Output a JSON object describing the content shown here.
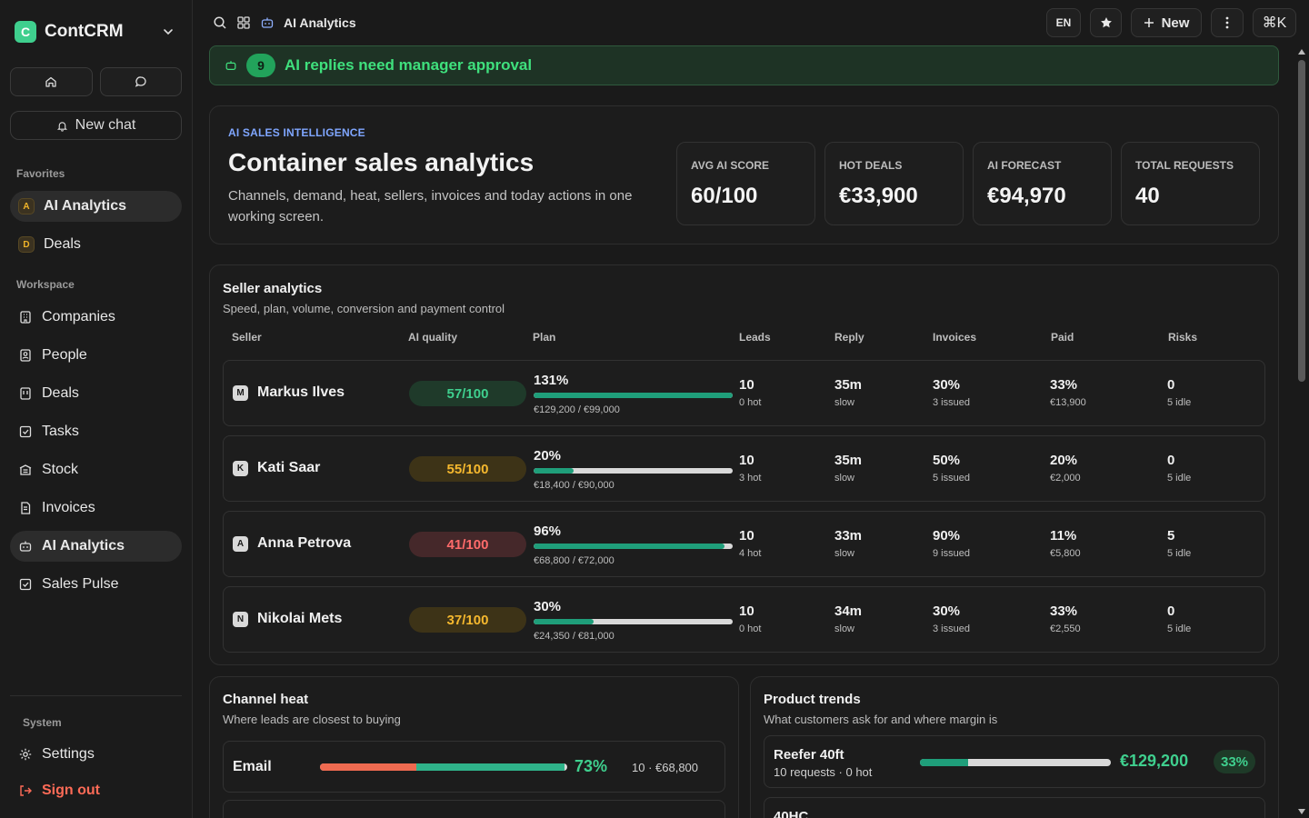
{
  "app": {
    "name": "ContCRM",
    "logo_letter": "C"
  },
  "sidebar": {
    "new_chat": "New chat",
    "favorites_label": "Favorites",
    "favorites": [
      {
        "label": "AI Analytics",
        "badge": "A",
        "active": true
      },
      {
        "label": "Deals",
        "badge": "D",
        "active": false
      }
    ],
    "workspace_label": "Workspace",
    "workspace": [
      {
        "label": "Companies",
        "icon": "building-icon"
      },
      {
        "label": "People",
        "icon": "person-icon"
      },
      {
        "label": "Deals",
        "icon": "deals-icon"
      },
      {
        "label": "Tasks",
        "icon": "task-icon"
      },
      {
        "label": "Stock",
        "icon": "stock-icon"
      },
      {
        "label": "Invoices",
        "icon": "invoice-icon"
      },
      {
        "label": "AI Analytics",
        "icon": "bot-icon",
        "active": true
      },
      {
        "label": "Sales Pulse",
        "icon": "pulse-icon"
      }
    ],
    "system_label": "System",
    "settings": "Settings",
    "sign_out": "Sign out"
  },
  "topbar": {
    "page_title": "AI Analytics",
    "lang": "EN",
    "new_label": "New",
    "shortcut": "⌘K"
  },
  "alert": {
    "count": "9",
    "text": "AI replies need manager approval"
  },
  "hero": {
    "eyebrow": "AI SALES INTELLIGENCE",
    "title": "Container sales analytics",
    "description": "Channels, demand, heat, sellers, invoices and today actions in one working screen.",
    "stats": [
      {
        "label": "AVG AI SCORE",
        "value": "60/100"
      },
      {
        "label": "HOT DEALS",
        "value": "€33,900"
      },
      {
        "label": "AI FORECAST",
        "value": "€94,970"
      },
      {
        "label": "TOTAL REQUESTS",
        "value": "40"
      }
    ]
  },
  "sellers": {
    "title": "Seller analytics",
    "subtitle": "Speed, plan, volume, conversion and payment control",
    "columns": [
      "Seller",
      "AI quality",
      "Plan",
      "Leads",
      "Reply",
      "Invoices",
      "Paid",
      "Risks"
    ],
    "rows": [
      {
        "initial": "M",
        "name": "Markus Ilves",
        "score": "57/100",
        "score_tone": "green",
        "plan_pct": "131%",
        "plan_fill": 1.0,
        "plan_detail": "€129,200 / €99,000",
        "leads": "10",
        "leads_sub": "0 hot",
        "reply": "35m",
        "reply_sub": "slow",
        "invoices": "30%",
        "invoices_sub": "3 issued",
        "paid": "33%",
        "paid_sub": "€13,900",
        "risks": "0",
        "risks_sub": "5 idle"
      },
      {
        "initial": "K",
        "name": "Kati Saar",
        "score": "55/100",
        "score_tone": "yellow",
        "plan_pct": "20%",
        "plan_fill": 0.2,
        "plan_detail": "€18,400 / €90,000",
        "leads": "10",
        "leads_sub": "3 hot",
        "reply": "35m",
        "reply_sub": "slow",
        "invoices": "50%",
        "invoices_sub": "5 issued",
        "paid": "20%",
        "paid_sub": "€2,000",
        "risks": "0",
        "risks_sub": "5 idle"
      },
      {
        "initial": "A",
        "name": "Anna Petrova",
        "score": "41/100",
        "score_tone": "red",
        "plan_pct": "96%",
        "plan_fill": 0.96,
        "plan_detail": "€68,800 / €72,000",
        "leads": "10",
        "leads_sub": "4 hot",
        "reply": "33m",
        "reply_sub": "slow",
        "invoices": "90%",
        "invoices_sub": "9 issued",
        "paid": "11%",
        "paid_sub": "€5,800",
        "risks": "5",
        "risks_sub": "5 idle"
      },
      {
        "initial": "N",
        "name": "Nikolai Mets",
        "score": "37/100",
        "score_tone": "yellow",
        "plan_pct": "30%",
        "plan_fill": 0.3,
        "plan_detail": "€24,350 / €81,000",
        "leads": "10",
        "leads_sub": "0 hot",
        "reply": "34m",
        "reply_sub": "slow",
        "invoices": "30%",
        "invoices_sub": "3 issued",
        "paid": "33%",
        "paid_sub": "€2,550",
        "risks": "0",
        "risks_sub": "5 idle"
      }
    ]
  },
  "channel_heat": {
    "title": "Channel heat",
    "subtitle": "Where leads are closest to buying",
    "rows": [
      {
        "name": "Email",
        "hot_fraction": 0.39,
        "fill_fraction": 0.99,
        "pct": "73%",
        "meta": "10 · €68,800"
      }
    ]
  },
  "product_trends": {
    "title": "Product trends",
    "subtitle": "What customers ask for and where margin is",
    "rows": [
      {
        "name": "Reefer 40ft",
        "meta": "10 requests · 0 hot",
        "fill": 0.25,
        "value": "€129,200",
        "badge": "33%"
      },
      {
        "name": "40HC"
      }
    ]
  },
  "colors": {
    "accent_green": "#3fcf8e",
    "alert_bg": "#1e3325",
    "eyebrow": "#7fa6ff",
    "danger": "#ff6b57"
  }
}
